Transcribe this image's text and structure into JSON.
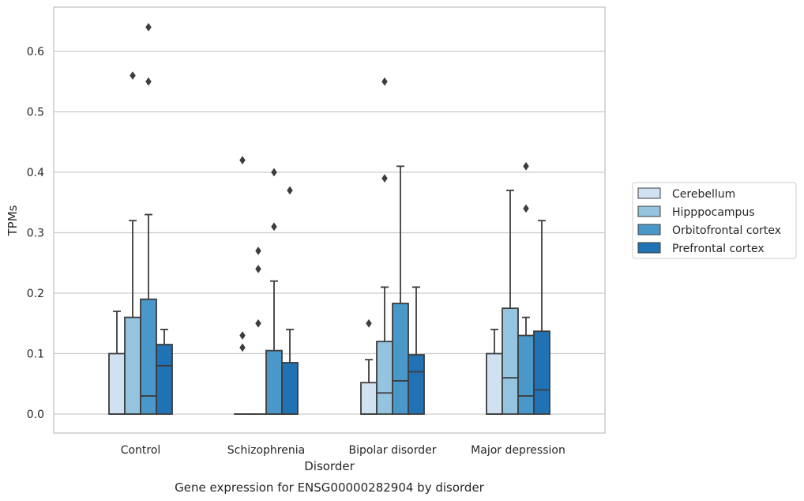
{
  "chart_data": {
    "type": "box",
    "title": "Gene expression for ENSG00000282904 by disorder",
    "xlabel": "Disorder",
    "ylabel": "TPMs",
    "ylim": [
      -0.03,
      0.67
    ],
    "yticks": [
      0.0,
      0.1,
      0.2,
      0.3,
      0.4,
      0.5,
      0.6
    ],
    "ytick_labels": [
      "0.0",
      "0.1",
      "0.2",
      "0.3",
      "0.4",
      "0.5",
      "0.6"
    ],
    "grid": "horizontal",
    "legend_position": "right",
    "categories": [
      "Control",
      "Schizophrenia",
      "Bipolar disorder",
      "Major depression"
    ],
    "series": [
      {
        "name": "Cerebellum",
        "color": "#d0e1f2",
        "boxes": [
          {
            "q1": 0.0,
            "median": 0.0,
            "q3": 0.1,
            "whisker_low": 0.0,
            "whisker_high": 0.17,
            "outliers": []
          },
          {
            "q1": 0.0,
            "median": 0.0,
            "q3": 0.0,
            "whisker_low": 0.0,
            "whisker_high": 0.0,
            "outliers": [
              0.42,
              0.13,
              0.11
            ]
          },
          {
            "q1": 0.0,
            "median": 0.0,
            "q3": 0.052,
            "whisker_low": 0.0,
            "whisker_high": 0.09,
            "outliers": [
              0.15
            ]
          },
          {
            "q1": 0.0,
            "median": 0.0,
            "q3": 0.1,
            "whisker_low": 0.0,
            "whisker_high": 0.14,
            "outliers": []
          }
        ]
      },
      {
        "name": "Hipppocampus",
        "color": "#94c4df",
        "boxes": [
          {
            "q1": 0.0,
            "median": 0.0,
            "q3": 0.16,
            "whisker_low": 0.0,
            "whisker_high": 0.32,
            "outliers": [
              0.56
            ]
          },
          {
            "q1": 0.0,
            "median": 0.0,
            "q3": 0.0,
            "whisker_low": 0.0,
            "whisker_high": 0.0,
            "outliers": [
              0.27,
              0.24,
              0.15
            ]
          },
          {
            "q1": 0.0,
            "median": 0.035,
            "q3": 0.12,
            "whisker_low": 0.0,
            "whisker_high": 0.21,
            "outliers": [
              0.55,
              0.39
            ]
          },
          {
            "q1": 0.0,
            "median": 0.06,
            "q3": 0.175,
            "whisker_low": 0.0,
            "whisker_high": 0.37,
            "outliers": []
          }
        ]
      },
      {
        "name": "Orbitofrontal cortex",
        "color": "#4a98c9",
        "boxes": [
          {
            "q1": 0.0,
            "median": 0.03,
            "q3": 0.19,
            "whisker_low": 0.0,
            "whisker_high": 0.33,
            "outliers": [
              0.64,
              0.55
            ]
          },
          {
            "q1": 0.0,
            "median": 0.0,
            "q3": 0.105,
            "whisker_low": 0.0,
            "whisker_high": 0.22,
            "outliers": [
              0.4,
              0.31
            ]
          },
          {
            "q1": 0.0,
            "median": 0.055,
            "q3": 0.183,
            "whisker_low": 0.0,
            "whisker_high": 0.41,
            "outliers": []
          },
          {
            "q1": 0.0,
            "median": 0.03,
            "q3": 0.13,
            "whisker_low": 0.0,
            "whisker_high": 0.16,
            "outliers": [
              0.41,
              0.34
            ]
          }
        ]
      },
      {
        "name": "Prefrontal cortex",
        "color": "#2171b5",
        "boxes": [
          {
            "q1": 0.0,
            "median": 0.08,
            "q3": 0.115,
            "whisker_low": 0.0,
            "whisker_high": 0.14,
            "outliers": []
          },
          {
            "q1": 0.0,
            "median": 0.0,
            "q3": 0.085,
            "whisker_low": 0.0,
            "whisker_high": 0.14,
            "outliers": [
              0.37
            ]
          },
          {
            "q1": 0.0,
            "median": 0.07,
            "q3": 0.098,
            "whisker_low": 0.0,
            "whisker_high": 0.21,
            "outliers": []
          },
          {
            "q1": 0.0,
            "median": 0.04,
            "q3": 0.137,
            "whisker_low": 0.0,
            "whisker_high": 0.32,
            "outliers": []
          }
        ]
      }
    ]
  }
}
